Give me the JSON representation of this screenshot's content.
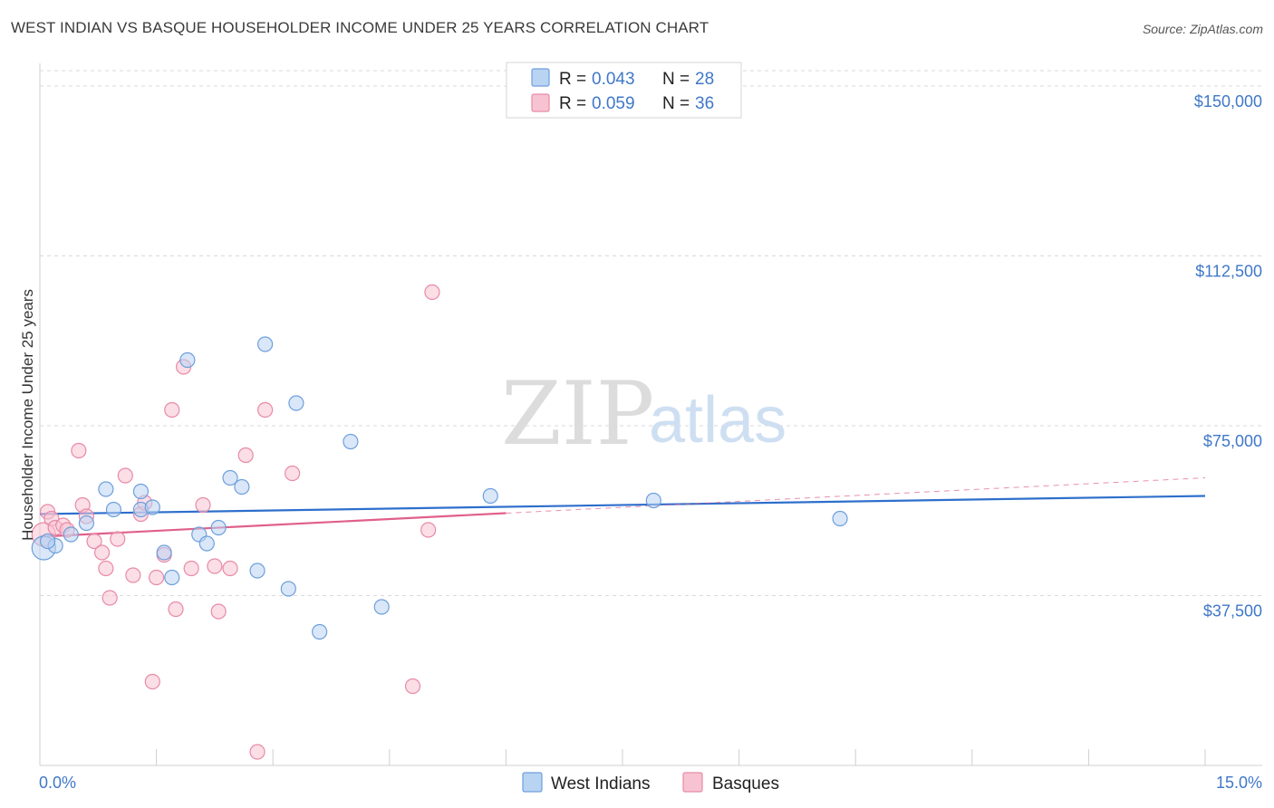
{
  "title": "WEST INDIAN VS BASQUE HOUSEHOLDER INCOME UNDER 25 YEARS CORRELATION CHART",
  "source": "Source: ZipAtlas.com",
  "watermark": {
    "zip": "ZIP",
    "atlas": "atlas"
  },
  "colors": {
    "blue_fill": "#b9d3f3",
    "blue_stroke": "#6e9fdc",
    "blue_line": "#2e6fcc",
    "pink_fill": "#f7c3d2",
    "pink_stroke": "#e88aa8",
    "pink_line": "#e0608a",
    "label_blue": "#3f78c8",
    "grid": "#d9d9d9"
  },
  "legend": {
    "rows": [
      {
        "r_label": "R = ",
        "r_value": "0.043",
        "n_label": "N = ",
        "n_value": "28"
      },
      {
        "r_label": "R = ",
        "r_value": "0.059",
        "n_label": "N = ",
        "n_value": "36"
      }
    ]
  },
  "bottom_legend": [
    "West Indians",
    "Basques"
  ],
  "chart_data": {
    "type": "scatter",
    "title": "WEST INDIAN VS BASQUE HOUSEHOLDER INCOME UNDER 25 YEARS CORRELATION CHART",
    "xlabel": "",
    "ylabel": "Householder Income Under 25 years",
    "xlim": [
      0,
      15
    ],
    "ylim": [
      0,
      155000
    ],
    "x_tick_labels": [
      "0.0%",
      "15.0%"
    ],
    "y_ticks": [
      37500,
      75000,
      112500,
      150000
    ],
    "y_tick_labels": [
      "$37,500",
      "$75,000",
      "$112,500",
      "$150,000"
    ],
    "series": [
      {
        "name": "West Indians",
        "r": 0.043,
        "n": 28,
        "points": [
          [
            0.05,
            48000
          ],
          [
            0.2,
            48500
          ],
          [
            0.4,
            51000
          ],
          [
            0.6,
            53500
          ],
          [
            0.85,
            61000
          ],
          [
            0.95,
            56500
          ],
          [
            1.3,
            56500
          ],
          [
            1.3,
            60500
          ],
          [
            1.45,
            57000
          ],
          [
            1.6,
            47000
          ],
          [
            1.7,
            41500
          ],
          [
            1.9,
            89500
          ],
          [
            2.05,
            51000
          ],
          [
            2.15,
            49000
          ],
          [
            2.3,
            52500
          ],
          [
            2.45,
            63500
          ],
          [
            2.6,
            61500
          ],
          [
            2.8,
            43000
          ],
          [
            2.9,
            93000
          ],
          [
            3.2,
            39000
          ],
          [
            3.3,
            80000
          ],
          [
            3.6,
            29500
          ],
          [
            4.0,
            71500
          ],
          [
            4.4,
            35000
          ],
          [
            5.8,
            59500
          ],
          [
            7.9,
            58500
          ],
          [
            10.3,
            54500
          ],
          [
            0.1,
            49500
          ]
        ],
        "trend": {
          "x": [
            0,
            15
          ],
          "y": [
            55500,
            59500
          ]
        }
      },
      {
        "name": "Basques",
        "r": 0.059,
        "n": 36,
        "points": [
          [
            0.05,
            51000
          ],
          [
            0.1,
            56000
          ],
          [
            0.15,
            54500
          ],
          [
            0.2,
            52500
          ],
          [
            0.3,
            53000
          ],
          [
            0.5,
            69500
          ],
          [
            0.55,
            57500
          ],
          [
            0.6,
            55000
          ],
          [
            0.7,
            49500
          ],
          [
            0.8,
            47000
          ],
          [
            0.85,
            43500
          ],
          [
            0.9,
            37000
          ],
          [
            1.0,
            50000
          ],
          [
            1.1,
            64000
          ],
          [
            1.2,
            42000
          ],
          [
            1.3,
            55500
          ],
          [
            1.35,
            58000
          ],
          [
            1.5,
            41500
          ],
          [
            1.45,
            18500
          ],
          [
            1.6,
            46500
          ],
          [
            1.7,
            78500
          ],
          [
            1.75,
            34500
          ],
          [
            1.85,
            88000
          ],
          [
            1.95,
            43500
          ],
          [
            2.1,
            57500
          ],
          [
            2.25,
            44000
          ],
          [
            2.3,
            34000
          ],
          [
            2.45,
            43500
          ],
          [
            2.65,
            68500
          ],
          [
            2.8,
            3000
          ],
          [
            2.9,
            78500
          ],
          [
            3.25,
            64500
          ],
          [
            4.8,
            17500
          ],
          [
            5.0,
            52000
          ],
          [
            5.05,
            104500
          ],
          [
            0.35,
            52000
          ]
        ],
        "trend": {
          "x": [
            0,
            15
          ],
          "y": [
            50500,
            63500
          ]
        },
        "trend_solid_until": 6
      }
    ]
  }
}
